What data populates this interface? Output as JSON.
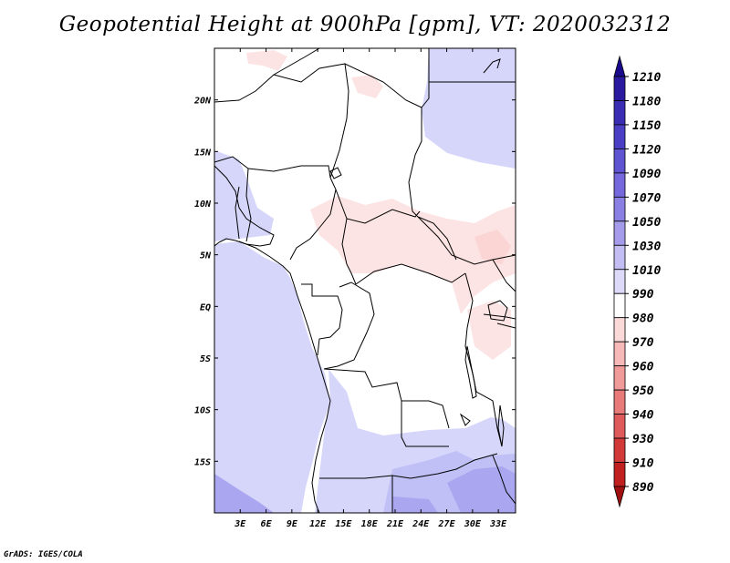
{
  "title": "Geopotential Height at 900hPa [gpm], VT: 2020032312",
  "credit": "GrADS: IGES/COLA",
  "axes": {
    "x_ticks": [
      "3E",
      "6E",
      "9E",
      "12E",
      "15E",
      "18E",
      "21E",
      "24E",
      "27E",
      "30E",
      "33E"
    ],
    "x_values": [
      3,
      6,
      9,
      12,
      15,
      18,
      21,
      24,
      27,
      30,
      33
    ],
    "y_ticks": [
      "20N",
      "15N",
      "10N",
      "5N",
      "EQ",
      "5S",
      "10S",
      "15S"
    ],
    "y_values": [
      20,
      15,
      10,
      5,
      0,
      -5,
      -10,
      -15
    ],
    "lon_range": [
      0,
      35
    ],
    "lat_range": [
      -20,
      25
    ]
  },
  "colorbar": {
    "levels": [
      "1210",
      "1180",
      "1150",
      "1120",
      "1090",
      "1070",
      "1050",
      "1030",
      "1010",
      "990",
      "980",
      "970",
      "960",
      "950",
      "940",
      "930",
      "910",
      "890"
    ],
    "colors": [
      "#1a0a8c",
      "#2a1aa0",
      "#3a2db4",
      "#4a3fc4",
      "#5e54d2",
      "#7468dc",
      "#8a80e4",
      "#a49ceb",
      "#c2bdf3",
      "#dddaf9",
      "#ffffff",
      "#fcd9d9",
      "#f7b8b8",
      "#f09a9a",
      "#e87a7a",
      "#df5a5a",
      "#d23a3a",
      "#c02020",
      "#a01010"
    ]
  },
  "field_colors": {
    "light_blue": "#d6d6fb",
    "mid_blue": "#c0bff6",
    "deep_blue": "#aaa6ef",
    "light_pink": "#fde4e4",
    "pink": "#fbd4d4"
  }
}
